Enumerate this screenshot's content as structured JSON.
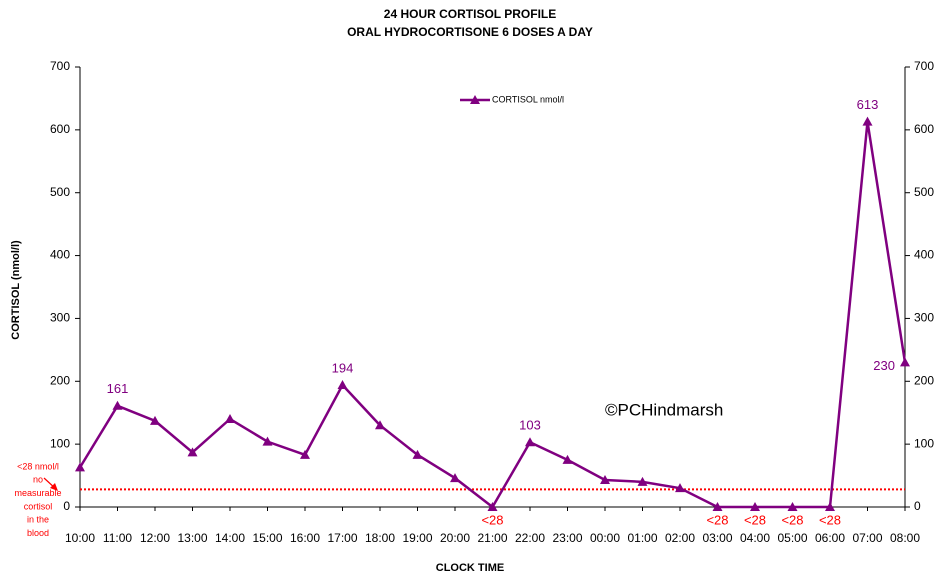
{
  "chart_data": {
    "type": "line",
    "title": [
      "24 HOUR CORTISOL PROFILE",
      "ORAL HYDROCORTISONE 6 DOSES A DAY"
    ],
    "x_label": "CLOCK TIME",
    "y_label": "CORTISOL (nmol/l)",
    "categories": [
      "10:00",
      "11:00",
      "12:00",
      "13:00",
      "14:00",
      "15:00",
      "16:00",
      "17:00",
      "18:00",
      "19:00",
      "20:00",
      "21:00",
      "22:00",
      "23:00",
      "00:00",
      "01:00",
      "02:00",
      "03:00",
      "04:00",
      "05:00",
      "06:00",
      "07:00",
      "08:00"
    ],
    "series": [
      {
        "name": "CORTISOL nmol/l",
        "color": "#800080",
        "values": [
          63,
          161,
          137,
          87,
          140,
          104,
          83,
          194,
          130,
          83,
          46,
          0,
          103,
          75,
          43,
          40,
          30,
          0,
          0,
          0,
          0,
          613,
          230
        ],
        "value_labels": [
          null,
          "161",
          null,
          null,
          null,
          null,
          null,
          "194",
          null,
          null,
          null,
          "<28",
          "103",
          null,
          null,
          null,
          null,
          "<28",
          "<28",
          "<28",
          "<28",
          "613",
          "230"
        ]
      }
    ],
    "value_label_color": "#800080",
    "below_detection_label_color": "#ff0000",
    "ylim": [
      0,
      700
    ],
    "yticks": [
      0,
      100,
      200,
      300,
      400,
      500,
      600,
      700
    ],
    "y2lim": [
      0,
      700
    ],
    "y2ticks": [
      0,
      100,
      200,
      300,
      400,
      500,
      600,
      700
    ],
    "grid": false,
    "legend": "top",
    "reference_line": {
      "value": 28,
      "color": "#ff0000",
      "style": "dotted"
    },
    "annotations": {
      "detection_note": [
        "<28 nmol/l",
        "no",
        "measurable",
        "cortisol",
        "in the",
        "blood"
      ],
      "watermark": "©PCHindmarsh"
    }
  }
}
